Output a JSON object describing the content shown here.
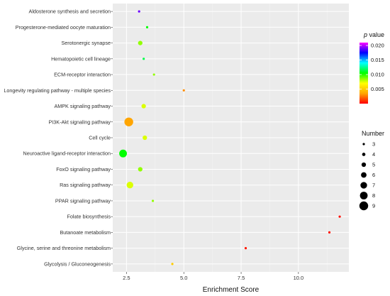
{
  "chart_data": {
    "type": "scatter",
    "xlabel": "Enrichment Score",
    "ylabel": "",
    "xlim": [
      1.9,
      12.2
    ],
    "x_ticks": [
      2.5,
      5.0,
      7.5,
      10.0
    ],
    "x_tick_labels": [
      "2.5",
      "5.0",
      "7.5",
      "10.0"
    ],
    "grid": true,
    "legend_position": "right",
    "categories": [
      "Aldosterone synthesis and secretion",
      "Progesterone-mediated oocyte maturation",
      "Serotonergic synapse",
      "Hematopoietic cell lineage",
      "ECM-receptor interaction",
      "Longevity regulating pathway - multiple species",
      "AMPK signaling pathway",
      "PI3K-Akt signaling pathway",
      "Cell cycle",
      "Neuroactive ligand-receptor interaction",
      "FoxO signaling pathway",
      "Ras signaling pathway",
      "PPAR signaling pathway",
      "Folate biosynthesis",
      "Butanoate metabolism",
      "Glycine, serine and threonine metabolism",
      "Glycolysis / Gluconeogenesis"
    ],
    "points": [
      {
        "category": "Aldosterone synthesis and secretion",
        "x": 3.05,
        "number": 3,
        "p_value": 0.019
      },
      {
        "category": "Progesterone-mediated oocyte maturation",
        "x": 3.4,
        "number": 3,
        "p_value": 0.0105
      },
      {
        "category": "Serotonergic synapse",
        "x": 3.1,
        "number": 5,
        "p_value": 0.0085
      },
      {
        "category": "Hematopoietic cell lineage",
        "x": 3.25,
        "number": 3,
        "p_value": 0.0115
      },
      {
        "category": "ECM-receptor interaction",
        "x": 3.7,
        "number": 3,
        "p_value": 0.0085
      },
      {
        "category": "Longevity regulating pathway - multiple species",
        "x": 5.0,
        "number": 3,
        "p_value": 0.003
      },
      {
        "category": "AMPK signaling pathway",
        "x": 3.25,
        "number": 5,
        "p_value": 0.0075
      },
      {
        "category": "PI3K-Akt signaling pathway",
        "x": 2.6,
        "number": 9,
        "p_value": 0.0035
      },
      {
        "category": "Cell cycle",
        "x": 3.3,
        "number": 5,
        "p_value": 0.0075
      },
      {
        "category": "Neuroactive ligand-receptor interaction",
        "x": 2.35,
        "number": 8,
        "p_value": 0.0105
      },
      {
        "category": "FoxO signaling pathway",
        "x": 3.1,
        "number": 5,
        "p_value": 0.0085
      },
      {
        "category": "Ras signaling pathway",
        "x": 2.65,
        "number": 7,
        "p_value": 0.0075
      },
      {
        "category": "PPAR signaling pathway",
        "x": 3.65,
        "number": 3,
        "p_value": 0.0085
      },
      {
        "category": "Folate biosynthesis",
        "x": 11.8,
        "number": 3,
        "p_value": 0.0003
      },
      {
        "category": "Butanoate metabolism",
        "x": 11.35,
        "number": 3,
        "p_value": 0.0003
      },
      {
        "category": "Glycine, serine and threonine metabolism",
        "x": 7.7,
        "number": 3,
        "p_value": 0.0005
      },
      {
        "category": "Glycolysis / Gluconeogenesis",
        "x": 4.5,
        "number": 3,
        "p_value": 0.005
      }
    ],
    "color_legend": {
      "title_italic": "p",
      "title_rest": " value",
      "range": [
        0.0,
        0.021
      ],
      "ticks": [
        0.005,
        0.01,
        0.015,
        0.02
      ],
      "tick_labels": [
        "0.005",
        "0.010",
        "0.015",
        "0.020"
      ],
      "gradient_colors": [
        "#ff0000",
        "#ffa500",
        "#ffff00",
        "#00ff00",
        "#00ffff",
        "#0000ff",
        "#ff00ff"
      ]
    },
    "size_legend": {
      "title": "Number",
      "values": [
        3,
        4,
        5,
        6,
        7,
        8,
        9
      ],
      "labels": [
        "3",
        "4",
        "5",
        "6",
        "7",
        "8",
        "9"
      ]
    }
  }
}
